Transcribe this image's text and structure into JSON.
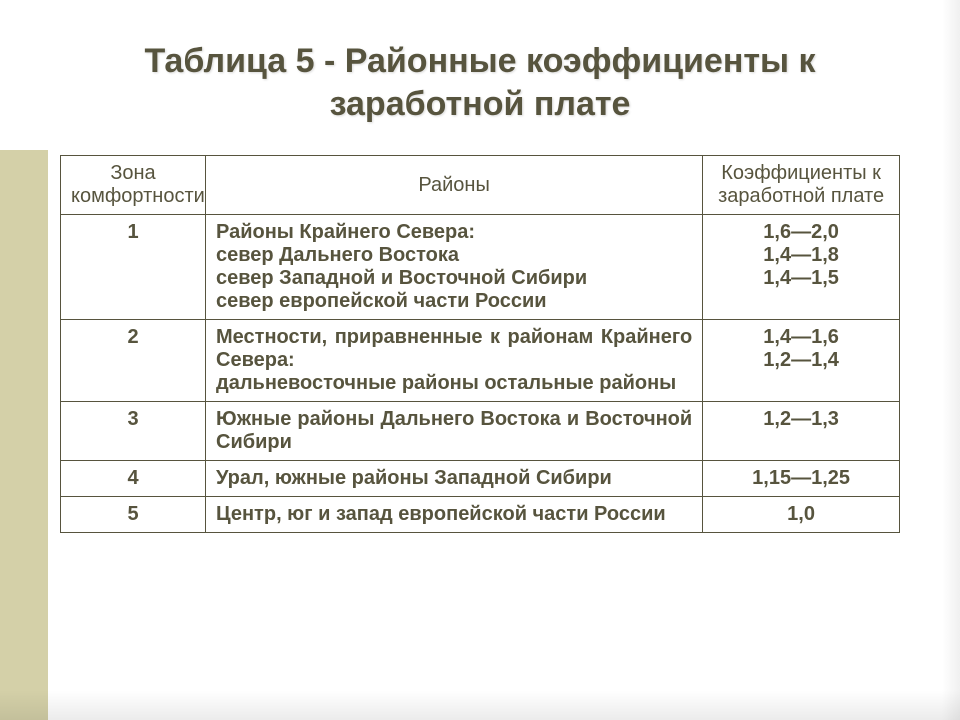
{
  "title": "Таблица 5 - Районные коэффициенты к заработной плате",
  "table": {
    "headers": {
      "zone": "Зона комфортности",
      "districts": "Районы",
      "coef": "Коэффициенты к заработной плате"
    },
    "rows": [
      {
        "zone": "1",
        "district_lines": [
          "Районы Крайнего Севера:",
          "север Дальнего Востока",
          "север Западной и Восточной Сибири",
          "север европейской части России"
        ],
        "coef": "1,6—2,0\n1,4—1,8\n1,4—1,5"
      },
      {
        "zone": "2",
        "district_lines": [
          "Местности, приравненные к районам Крайнего Севера:",
          "дальневосточные районы остальные районы"
        ],
        "coef": "1,4—1,6\n1,2—1,4"
      },
      {
        "zone": "3",
        "district_lines": [
          "Южные районы Дальнего Востока и Восточной Сибири"
        ],
        "coef": "1,2—1,3"
      },
      {
        "zone": "4",
        "district_lines": [
          "Урал, южные районы Западной Сибири"
        ],
        "coef": "1,15—1,25"
      },
      {
        "zone": "5",
        "district_lines": [
          "Центр, юг и запад европейской части России"
        ],
        "coef": "1,0"
      }
    ]
  },
  "style": {
    "background_color": "#ffffff",
    "accent_strip_color": "#d4d0a8",
    "text_color": "#57543e",
    "border_color": "#57543e",
    "title_fontsize": 34,
    "cell_fontsize": 20,
    "col_widths": {
      "zone": 140,
      "districts": 480,
      "coef": 190
    }
  }
}
